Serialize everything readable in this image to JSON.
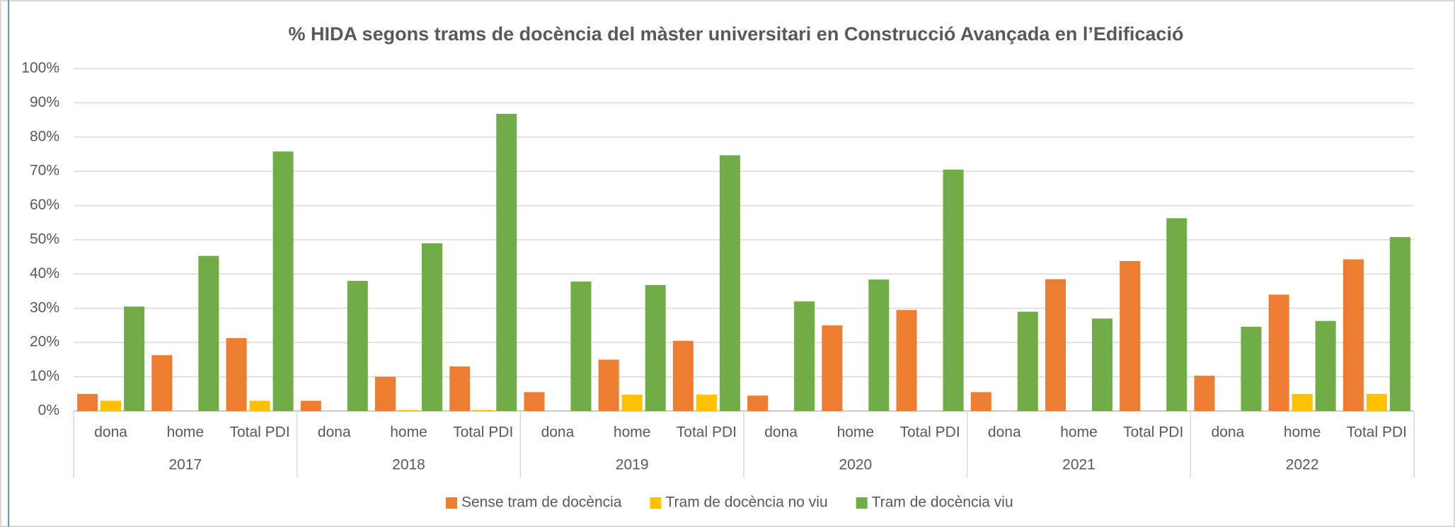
{
  "chart_data": {
    "type": "bar",
    "title": "% HIDA segons trams de docència del màster universitari en Construcció Avançada en l’Edificació",
    "categories": [
      "dona",
      "home",
      "Total PDI",
      "dona",
      "home",
      "Total PDI",
      "dona",
      "home",
      "Total PDI",
      "dona",
      "home",
      "Total PDI",
      "dona",
      "home",
      "Total PDI",
      "dona",
      "home",
      "Total PDI"
    ],
    "groups": [
      "2017",
      "2018",
      "2019",
      "2020",
      "2021",
      "2022"
    ],
    "series": [
      {
        "name": "Sense tram de docència",
        "color": "#ed7d31",
        "values": [
          5,
          16.3,
          21.3,
          3,
          10,
          13,
          5.5,
          15,
          20.5,
          4.5,
          25,
          29.5,
          5.5,
          38.5,
          43.8,
          10.3,
          34,
          44.3
        ]
      },
      {
        "name": "Tram de docència no viu",
        "color": "#ffc000",
        "values": [
          3,
          0,
          3,
          0,
          0.3,
          0.3,
          0,
          4.8,
          4.8,
          0,
          0,
          0,
          0,
          0,
          0,
          0,
          5,
          5
        ]
      },
      {
        "name": "Tram de docència viu",
        "color": "#70ad47",
        "values": [
          30.5,
          45.3,
          75.8,
          38,
          49,
          86.8,
          37.8,
          36.8,
          74.7,
          32,
          38.4,
          70.5,
          29,
          27,
          56.3,
          24.6,
          26.3,
          50.8
        ]
      }
    ],
    "ylim": [
      0,
      100
    ],
    "yticks": [
      {
        "value": 0,
        "label": "0%"
      },
      {
        "value": 10,
        "label": "10%"
      },
      {
        "value": 20,
        "label": "20%"
      },
      {
        "value": 30,
        "label": "30%"
      },
      {
        "value": 40,
        "label": "40%"
      },
      {
        "value": 50,
        "label": "50%"
      },
      {
        "value": 60,
        "label": "60%"
      },
      {
        "value": 70,
        "label": "70%"
      },
      {
        "value": 80,
        "label": "80%"
      },
      {
        "value": 90,
        "label": "90%"
      },
      {
        "value": 100,
        "label": "100%"
      }
    ],
    "grid": true,
    "legend": "bottom"
  }
}
